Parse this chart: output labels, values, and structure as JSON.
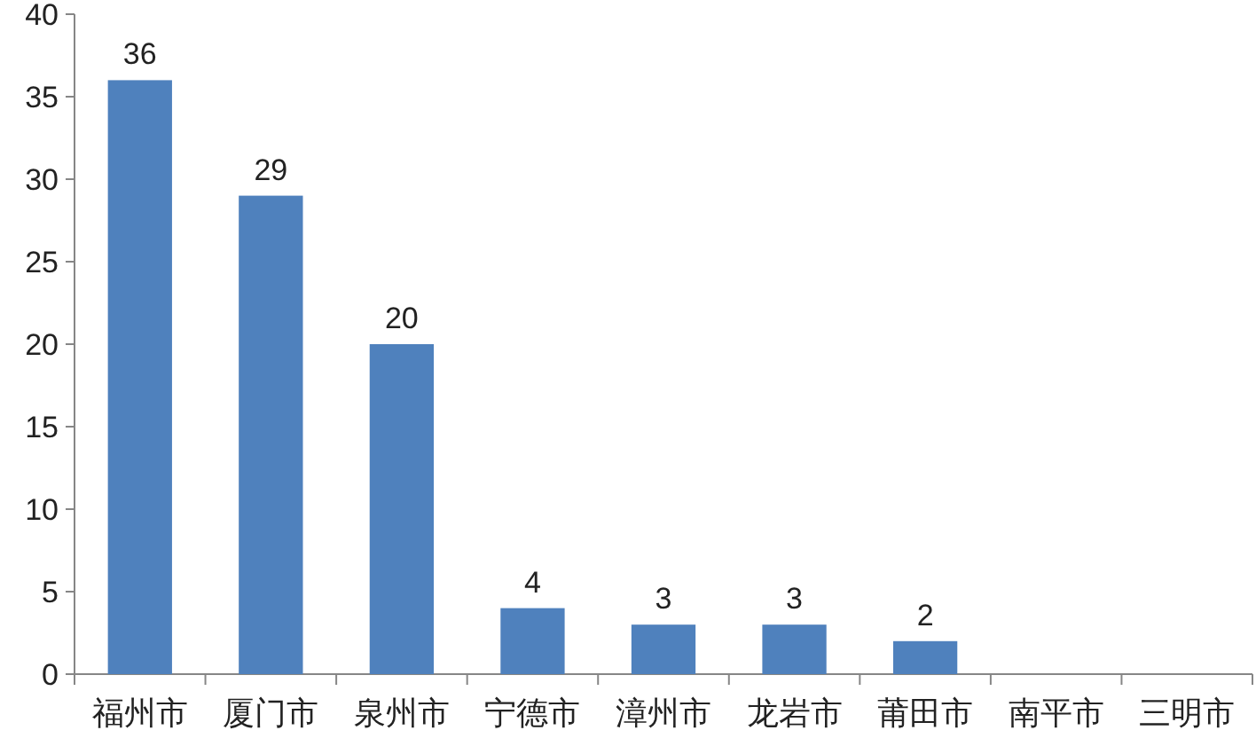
{
  "chart_data": {
    "type": "bar",
    "categories": [
      "福州市",
      "厦门市",
      "泉州市",
      "宁德市",
      "漳州市",
      "龙岩市",
      "莆田市",
      "南平市",
      "三明市"
    ],
    "values": [
      36,
      29,
      20,
      4,
      3,
      3,
      2,
      null,
      null
    ],
    "color": "#4f81bd",
    "ylim": [
      0,
      40
    ],
    "yticks": [
      0,
      5,
      10,
      15,
      20,
      25,
      30,
      35,
      40
    ],
    "data_labels": true,
    "grid": false
  }
}
